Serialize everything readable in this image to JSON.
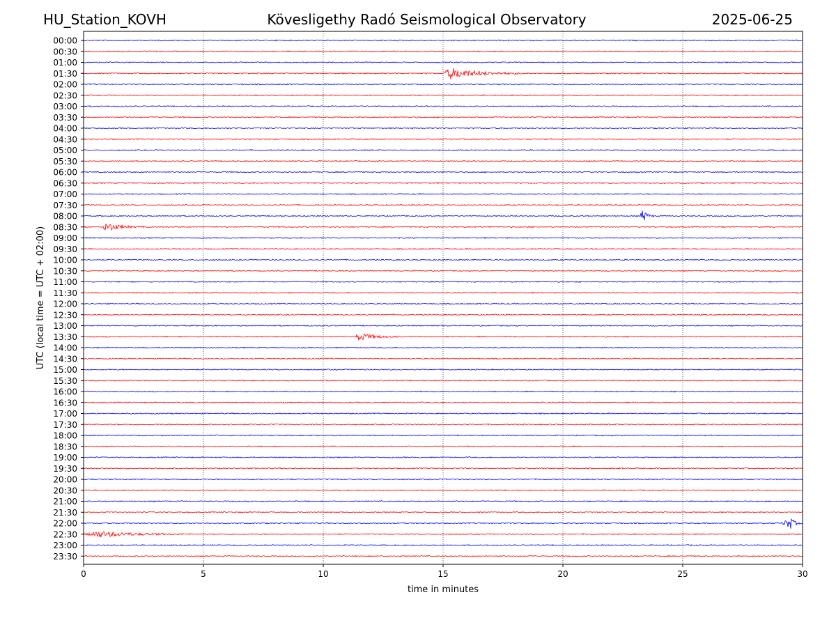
{
  "header": {
    "station": "HU_Station_KOVH",
    "observatory": "Kövesligethy Radó Seismological Observatory",
    "date": "2025-06-25"
  },
  "colors": {
    "even_trace": "#0000ff",
    "odd_trace": "#ff0000",
    "axes": "#000000",
    "grid": "#000000"
  },
  "chart_data": {
    "type": "line",
    "title": "Kövesligethy Radó Seismological Observatory",
    "xlabel": "time in minutes",
    "ylabel": "UTC (local time = UTC + 02:00)",
    "xlim": [
      0,
      30
    ],
    "xticks": [
      0,
      5,
      10,
      15,
      20,
      25,
      30
    ],
    "vertical_grid": true,
    "trace_colors": [
      "blue",
      "red"
    ],
    "rows": [
      "00:00",
      "00:30",
      "01:00",
      "01:30",
      "02:00",
      "02:30",
      "03:00",
      "03:30",
      "04:00",
      "04:30",
      "05:00",
      "05:30",
      "06:00",
      "06:30",
      "07:00",
      "07:30",
      "08:00",
      "08:30",
      "09:00",
      "09:30",
      "10:00",
      "10:30",
      "11:00",
      "11:30",
      "12:00",
      "12:30",
      "13:00",
      "13:30",
      "14:00",
      "14:30",
      "15:00",
      "15:30",
      "16:00",
      "16:30",
      "17:00",
      "17:30",
      "18:00",
      "18:30",
      "19:00",
      "19:30",
      "20:00",
      "20:30",
      "21:00",
      "21:30",
      "22:00",
      "22:30",
      "23:00",
      "23:30"
    ],
    "events": [
      {
        "row": "01:30",
        "start_min": 15.0,
        "peak_min": 15.3,
        "end_min": 18.5,
        "amplitude": 0.55
      },
      {
        "row": "08:00",
        "start_min": 23.2,
        "peak_min": 23.35,
        "end_min": 23.8,
        "amplitude": 0.7
      },
      {
        "row": "08:30",
        "start_min": 0.8,
        "peak_min": 0.95,
        "end_min": 2.6,
        "amplitude": 0.45
      },
      {
        "row": "13:30",
        "start_min": 11.3,
        "peak_min": 11.5,
        "end_min": 13.2,
        "amplitude": 0.4
      },
      {
        "row": "22:00",
        "start_min": 29.1,
        "peak_min": 29.5,
        "end_min": 30.0,
        "amplitude": 0.55
      },
      {
        "row": "22:30",
        "start_min": 0.0,
        "peak_min": 0.6,
        "end_min": 4.5,
        "amplitude": 0.3
      }
    ]
  }
}
